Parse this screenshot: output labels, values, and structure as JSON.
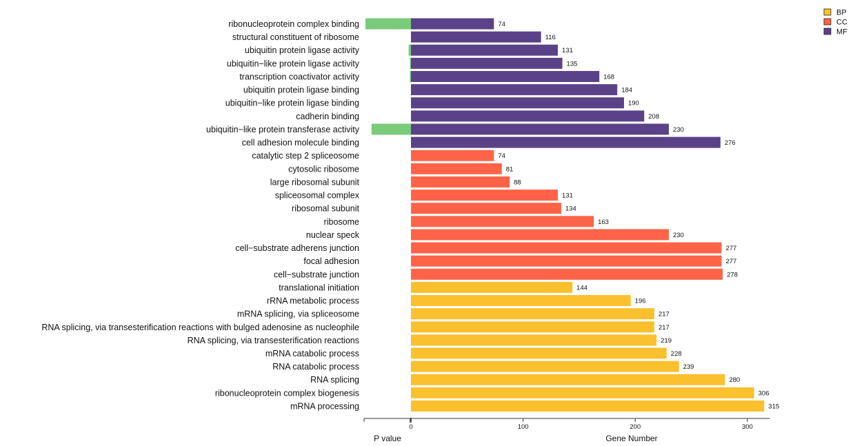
{
  "chart_data": {
    "type": "bar",
    "orientation": "horizontal",
    "xlabel": "Gene Number",
    "pvalue_label": "P value",
    "xlim": [
      0,
      320
    ],
    "xticks": [
      0,
      100,
      200,
      300
    ],
    "pvalue_tick": "0",
    "legend": {
      "placement": "top-right",
      "entries": [
        {
          "name": "BP",
          "color": "#FBC02D"
        },
        {
          "name": "CC",
          "color": "#FF6347"
        },
        {
          "name": "MF",
          "color": "#5B4288"
        }
      ]
    },
    "pvalue_color": "#7ACB7A",
    "categories": [
      "ribonucleoprotein complex binding",
      "structural constituent of ribosome",
      "ubiquitin protein ligase activity",
      "ubiquitin−like protein ligase activity",
      "transcription coactivator activity",
      "ubiquitin protein ligase binding",
      "ubiquitin−like protein ligase binding",
      "cadherin binding",
      "ubiquitin−like protein transferase activity",
      "cell adhesion molecule binding",
      "catalytic step 2 spliceosome",
      "cytosolic ribosome",
      "large ribosomal subunit",
      "spliceosomal complex",
      "ribosomal subunit",
      "ribosome",
      "nuclear speck",
      "cell−substrate adherens junction",
      "focal adhesion",
      "cell−substrate junction",
      "translational initiation",
      "rRNA metabolic process",
      "mRNA splicing, via spliceosome",
      "RNA splicing, via transesterification reactions with bulged adenosine as nucleophile",
      "RNA splicing, via transesterification reactions",
      "mRNA catabolic process",
      "RNA catabolic process",
      "RNA splicing",
      "ribonucleoprotein complex biogenesis",
      "mRNA processing"
    ],
    "values": [
      74,
      116,
      131,
      135,
      168,
      184,
      190,
      208,
      230,
      276,
      74,
      81,
      88,
      131,
      134,
      163,
      230,
      277,
      277,
      278,
      144,
      196,
      217,
      217,
      219,
      228,
      239,
      280,
      306,
      315
    ],
    "groups": [
      "MF",
      "MF",
      "MF",
      "MF",
      "MF",
      "MF",
      "MF",
      "MF",
      "MF",
      "MF",
      "CC",
      "CC",
      "CC",
      "CC",
      "CC",
      "CC",
      "CC",
      "CC",
      "CC",
      "CC",
      "BP",
      "BP",
      "BP",
      "BP",
      "BP",
      "BP",
      "BP",
      "BP",
      "BP",
      "BP"
    ],
    "pvalue_fraction": [
      0.97,
      0.0,
      0.05,
      0.02,
      0.01,
      0.0,
      0.0,
      0.0,
      0.84,
      0.0,
      0.0,
      0.0,
      0.0,
      0.0,
      0.0,
      0.0,
      0.0,
      0.0,
      0.0,
      0.0,
      0.0,
      0.0,
      0.0,
      0.0,
      0.0,
      0.0,
      0.0,
      0.0,
      0.0,
      0.0
    ]
  }
}
